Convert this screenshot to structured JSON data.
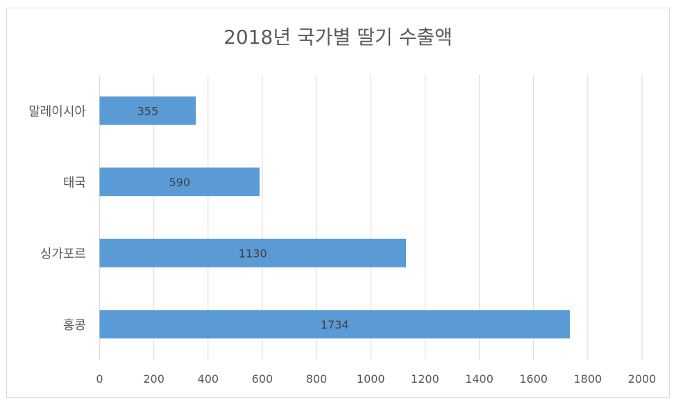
{
  "chart_data": {
    "type": "bar",
    "orientation": "horizontal",
    "title": "2018년 국가별 딸기 수출액",
    "categories": [
      "말레이시아",
      "태국",
      "싱가포르",
      "홍콩"
    ],
    "values": [
      355,
      590,
      1130,
      1734
    ],
    "xlim": [
      0,
      2000
    ],
    "xticks": [
      0,
      200,
      400,
      600,
      800,
      1000,
      1200,
      1400,
      1600,
      1800,
      2000
    ],
    "grid": "vertical",
    "data_labels": true,
    "bar_color": "#5b9bd5",
    "grid_color": "#d9d9d9"
  }
}
